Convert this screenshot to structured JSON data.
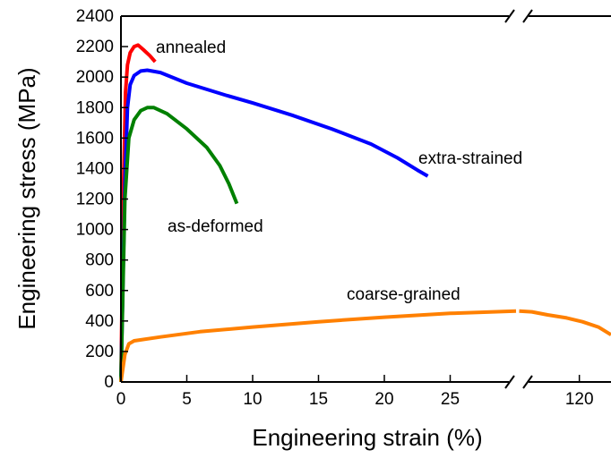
{
  "chart_data": {
    "type": "line",
    "title": "",
    "xlabel": "Engineering strain (%)",
    "ylabel": "Engineering stress (MPa)",
    "xlim": [
      0,
      130
    ],
    "ylim": [
      0,
      2400
    ],
    "x_axis_break": {
      "from": 30,
      "to": 100
    },
    "x_ticks": [
      0,
      5,
      10,
      15,
      20,
      25,
      120
    ],
    "y_ticks": [
      0,
      200,
      400,
      600,
      800,
      1000,
      1200,
      1400,
      1600,
      1800,
      2000,
      2200,
      2400
    ],
    "grid": false,
    "legend": "none (series labeled directly on the plot)",
    "series": [
      {
        "name": "annealed",
        "color": "#ff0000",
        "points": [
          [
            0,
            0
          ],
          [
            0.2,
            1300
          ],
          [
            0.35,
            1900
          ],
          [
            0.5,
            2080
          ],
          [
            0.7,
            2160
          ],
          [
            1.0,
            2200
          ],
          [
            1.3,
            2210
          ],
          [
            1.7,
            2180
          ],
          [
            2.2,
            2140
          ],
          [
            2.6,
            2100
          ]
        ]
      },
      {
        "name": "extra-strained",
        "color": "#0000ff",
        "points": [
          [
            0,
            0
          ],
          [
            0.3,
            1300
          ],
          [
            0.5,
            1800
          ],
          [
            0.7,
            1950
          ],
          [
            1.0,
            2010
          ],
          [
            1.5,
            2040
          ],
          [
            2.0,
            2045
          ],
          [
            3.0,
            2030
          ],
          [
            5.0,
            1960
          ],
          [
            8.0,
            1880
          ],
          [
            10.0,
            1830
          ],
          [
            13.0,
            1750
          ],
          [
            16.0,
            1660
          ],
          [
            19.0,
            1560
          ],
          [
            21.0,
            1470
          ],
          [
            22.5,
            1390
          ],
          [
            23.3,
            1350
          ]
        ]
      },
      {
        "name": "as-deformed",
        "color": "#008000",
        "points": [
          [
            0,
            0
          ],
          [
            0.3,
            1200
          ],
          [
            0.6,
            1600
          ],
          [
            1.0,
            1720
          ],
          [
            1.5,
            1780
          ],
          [
            2.0,
            1800
          ],
          [
            2.5,
            1800
          ],
          [
            3.5,
            1760
          ],
          [
            5.0,
            1660
          ],
          [
            6.5,
            1540
          ],
          [
            7.5,
            1420
          ],
          [
            8.2,
            1300
          ],
          [
            8.8,
            1170
          ]
        ]
      },
      {
        "name": "coarse-grained",
        "color": "#ff8000",
        "segments": [
          [
            [
              0,
              0
            ],
            [
              0.3,
              180
            ],
            [
              0.6,
              250
            ],
            [
              1.0,
              270
            ],
            [
              3,
              295
            ],
            [
              6,
              330
            ],
            [
              10,
              360
            ],
            [
              15,
              395
            ],
            [
              20,
              425
            ],
            [
              25,
              450
            ],
            [
              30,
              465
            ]
          ],
          [
            [
              101,
              465
            ],
            [
              105,
              460
            ],
            [
              110,
              440
            ],
            [
              116,
              420
            ],
            [
              121,
              395
            ],
            [
              126,
              360
            ],
            [
              130,
              310
            ]
          ]
        ]
      }
    ]
  }
}
